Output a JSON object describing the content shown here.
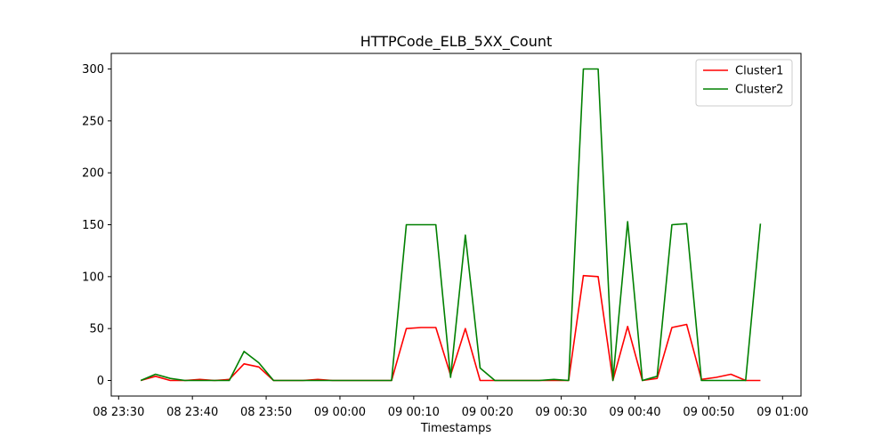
{
  "chart_data": {
    "type": "line",
    "title": "HTTPCode_ELB_5XX_Count",
    "xlabel": "Timestamps",
    "ylabel": "",
    "ylim": [
      -15,
      315
    ],
    "x_range": [
      "08 23:29:00",
      "09 01:02:30"
    ],
    "x_ticks": [
      {
        "label": "08 23:30",
        "t": "08 23:30:00"
      },
      {
        "label": "08 23:40",
        "t": "08 23:40:00"
      },
      {
        "label": "08 23:50",
        "t": "08 23:50:00"
      },
      {
        "label": "09 00:00",
        "t": "09 00:00:00"
      },
      {
        "label": "09 00:10",
        "t": "09 00:10:00"
      },
      {
        "label": "09 00:20",
        "t": "09 00:20:00"
      },
      {
        "label": "09 00:30",
        "t": "09 00:30:00"
      },
      {
        "label": "09 00:40",
        "t": "09 00:40:00"
      },
      {
        "label": "09 00:50",
        "t": "09 00:50:00"
      },
      {
        "label": "09 01:00",
        "t": "09 01:00:00"
      }
    ],
    "y_ticks": [
      0,
      50,
      100,
      150,
      200,
      250,
      300
    ],
    "legend": {
      "placement": "top-right"
    },
    "grid": false,
    "x": [
      "08 23:33:00",
      "08 23:35:00",
      "08 23:37:00",
      "08 23:39:00",
      "08 23:41:00",
      "08 23:43:00",
      "08 23:45:00",
      "08 23:47:00",
      "08 23:49:00",
      "08 23:51:00",
      "08 23:53:00",
      "08 23:55:00",
      "08 23:57:00",
      "08 23:59:00",
      "09 00:01:00",
      "09 00:03:00",
      "09 00:05:00",
      "09 00:07:00",
      "09 00:09:00",
      "09 00:11:00",
      "09 00:13:00",
      "09 00:15:00",
      "09 00:17:00",
      "09 00:19:00",
      "09 00:21:00",
      "09 00:23:00",
      "09 00:25:00",
      "09 00:27:00",
      "09 00:29:00",
      "09 00:31:00",
      "09 00:33:00",
      "09 00:35:00",
      "09 00:37:00",
      "09 00:39:00",
      "09 00:41:00",
      "09 00:43:00",
      "09 00:45:00",
      "09 00:47:00",
      "09 00:49:00",
      "09 00:51:00",
      "09 00:53:00",
      "09 00:55:00",
      "09 00:57:00"
    ],
    "series": [
      {
        "name": "Cluster1",
        "color": "#ff0000",
        "values": [
          0,
          4,
          0,
          0,
          1,
          0,
          1,
          16,
          13,
          0,
          0,
          0,
          1,
          0,
          0,
          0,
          0,
          0,
          50,
          51,
          51,
          5,
          50,
          0,
          0,
          0,
          0,
          0,
          0,
          0,
          101,
          100,
          0,
          52,
          0,
          2,
          51,
          54,
          1,
          3,
          6,
          0,
          0
        ]
      },
      {
        "name": "Cluster2",
        "color": "#008000",
        "values": [
          0,
          6,
          2,
          0,
          0,
          0,
          0,
          28,
          17,
          0,
          0,
          0,
          0,
          0,
          0,
          0,
          0,
          0,
          150,
          150,
          150,
          3,
          140,
          12,
          0,
          0,
          0,
          0,
          1,
          0,
          300,
          300,
          0,
          153,
          0,
          4,
          150,
          151,
          0,
          0,
          0,
          0,
          151
        ]
      }
    ]
  }
}
